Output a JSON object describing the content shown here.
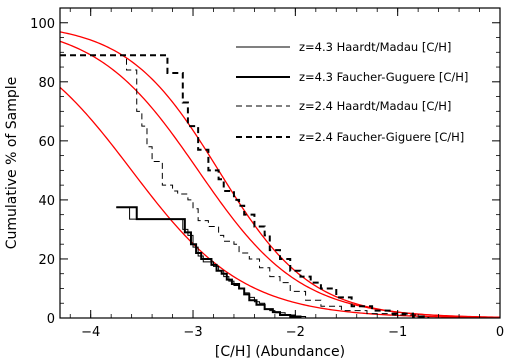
{
  "chart_data": {
    "type": "line",
    "title": "",
    "xlabel": "[C/H] (Abundance)",
    "ylabel": "Cumulative % of Sample",
    "xlim": [
      -4.3,
      0
    ],
    "ylim": [
      0,
      105
    ],
    "xticks": [
      -4,
      -3,
      -2,
      -1,
      0
    ],
    "yticks": [
      0,
      20,
      40,
      60,
      80,
      100
    ],
    "xtick_labels": [
      "−4",
      "−3",
      "−2",
      "−1",
      "0"
    ],
    "ytick_labels": [
      "0",
      "20",
      "40",
      "60",
      "80",
      "100"
    ],
    "grid": false,
    "legend_position": "top-right",
    "colors": {
      "axes": "#000000",
      "data": "#000000",
      "model": "#ff0000"
    },
    "series": [
      {
        "name": "z=4.3 Haardt/Madau [C/H]",
        "style": "solid-thin",
        "x": [
          -3.75,
          -3.62,
          -3.62,
          -3.15,
          -3.1,
          -3.05,
          -3.0,
          -2.95,
          -2.9,
          -2.85,
          -2.8,
          -2.75,
          -2.7,
          -2.65,
          -2.6,
          -2.55,
          -2.5,
          -2.45,
          -2.4,
          -2.35,
          -2.3,
          -2.25,
          -2.2,
          -2.1,
          -2.0,
          -1.9
        ],
        "y": [
          37.5,
          37.5,
          33.5,
          33.5,
          30,
          28,
          24,
          21,
          19,
          19,
          17.5,
          16,
          14,
          12.5,
          11,
          10,
          8.5,
          7,
          5.5,
          5,
          3,
          2.5,
          1.8,
          1,
          0.5,
          0
        ]
      },
      {
        "name": "z=4.3 Faucher-Guguere [C/H]",
        "style": "solid-thick",
        "x": [
          -3.75,
          -3.55,
          -3.55,
          -3.15,
          -3.08,
          -3.02,
          -2.97,
          -2.92,
          -2.87,
          -2.82,
          -2.77,
          -2.72,
          -2.67,
          -2.62,
          -2.55,
          -2.5,
          -2.45,
          -2.38,
          -2.3,
          -2.22,
          -2.15,
          -2.05,
          -1.95
        ],
        "y": [
          37.5,
          37.5,
          33.5,
          33.5,
          29,
          25,
          22,
          20,
          20,
          18,
          16,
          15,
          13,
          11.5,
          10,
          8,
          6,
          4.5,
          3,
          2,
          1,
          0.5,
          0
        ]
      },
      {
        "name": "z=2.4 Haardt/Madau [C/H]",
        "style": "dashed-thin",
        "x": [
          -4.3,
          -3.65,
          -3.65,
          -3.55,
          -3.5,
          -3.45,
          -3.4,
          -3.3,
          -3.2,
          -3.15,
          -3.05,
          -3.0,
          -2.95,
          -2.85,
          -2.75,
          -2.7,
          -2.6,
          -2.55,
          -2.45,
          -2.35,
          -2.25,
          -2.15,
          -2.05,
          -1.9,
          -1.75,
          -1.55,
          -1.3,
          -1.05,
          -0.8
        ],
        "y": [
          89,
          89,
          84,
          70,
          65,
          58,
          53,
          45,
          43,
          42,
          40,
          37,
          33,
          31,
          28,
          26,
          25,
          22,
          20,
          17,
          14,
          12,
          9,
          6,
          4,
          2.5,
          1.5,
          1,
          0
        ]
      },
      {
        "name": "z=2.4 Faucher-Giguere [C/H]",
        "style": "dashed-thick",
        "x": [
          -4.3,
          -3.25,
          -3.25,
          -3.1,
          -3.05,
          -2.95,
          -2.85,
          -2.75,
          -2.7,
          -2.6,
          -2.55,
          -2.5,
          -2.4,
          -2.3,
          -2.25,
          -2.15,
          -2.05,
          -1.95,
          -1.85,
          -1.75,
          -1.6,
          -1.45,
          -1.25,
          -1.05,
          -0.85,
          -0.7
        ],
        "y": [
          89,
          89,
          83,
          73,
          65,
          57,
          50,
          47,
          43,
          40,
          38,
          35,
          31,
          28,
          23,
          20,
          16,
          14,
          12,
          10,
          7,
          4,
          2.5,
          1.5,
          0.5,
          0
        ]
      }
    ],
    "model_curves": [
      {
        "name": "",
        "amplitude": 100,
        "center": -3.6,
        "width": 0.55
      },
      {
        "name": "",
        "amplitude": 100,
        "center": -2.95,
        "width": 0.5
      },
      {
        "name": "",
        "amplitude": 100,
        "center": -2.75,
        "width": 0.45
      }
    ]
  }
}
